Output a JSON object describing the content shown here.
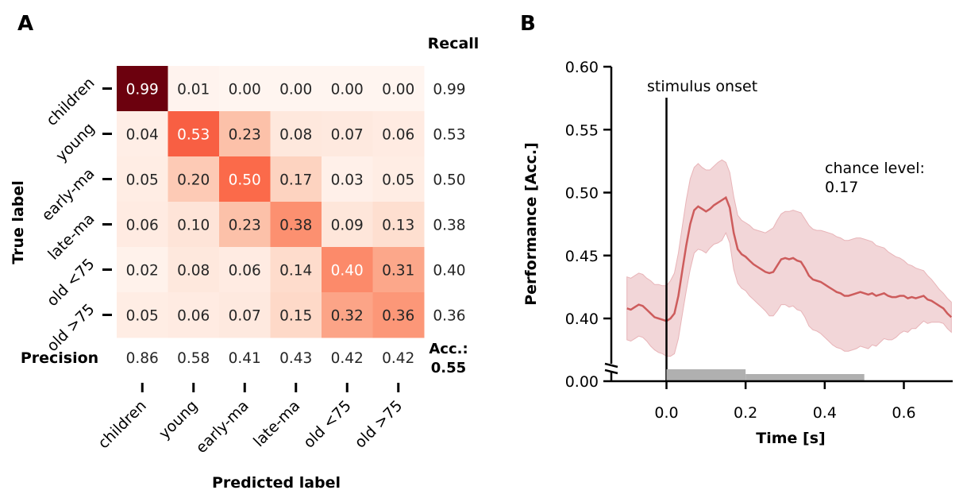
{
  "panels": {
    "a": {
      "letter": "A"
    },
    "b": {
      "letter": "B"
    }
  },
  "chart_data": [
    {
      "type": "heatmap",
      "categories": [
        "children",
        "young",
        "early-ma",
        "late-ma",
        "old <75",
        "old >75"
      ],
      "row_labels": [
        "children",
        "young",
        "early-ma",
        "late-ma",
        "old <75",
        "old >75"
      ],
      "col_labels": [
        "children",
        "young",
        "early-ma",
        "late-ma",
        "old <75",
        "old >75"
      ],
      "values": [
        [
          0.99,
          0.01,
          0.0,
          0.0,
          0.0,
          0.0
        ],
        [
          0.04,
          0.53,
          0.23,
          0.08,
          0.07,
          0.06
        ],
        [
          0.05,
          0.2,
          0.5,
          0.17,
          0.03,
          0.05
        ],
        [
          0.06,
          0.1,
          0.23,
          0.38,
          0.09,
          0.13
        ],
        [
          0.02,
          0.08,
          0.06,
          0.14,
          0.4,
          0.31
        ],
        [
          0.05,
          0.06,
          0.07,
          0.15,
          0.32,
          0.36
        ]
      ],
      "cell_labels": [
        [
          "0.99",
          "0.01",
          "0.00",
          "0.00",
          "0.00",
          "0.00"
        ],
        [
          "0.04",
          "0.53",
          "0.23",
          "0.08",
          "0.07",
          "0.06"
        ],
        [
          "0.05",
          "0.20",
          "0.50",
          "0.17",
          "0.03",
          "0.05"
        ],
        [
          "0.06",
          "0.10",
          "0.23",
          "0.38",
          "0.09",
          "0.13"
        ],
        [
          "0.02",
          "0.08",
          "0.06",
          "0.14",
          "0.40",
          "0.31"
        ],
        [
          "0.05",
          "0.06",
          "0.07",
          "0.15",
          "0.32",
          "0.36"
        ]
      ],
      "recall_title": "Recall",
      "recall": [
        "0.99",
        "0.53",
        "0.50",
        "0.38",
        "0.40",
        "0.36"
      ],
      "precision_title": "Precision",
      "precision": [
        "0.86",
        "0.58",
        "0.41",
        "0.43",
        "0.42",
        "0.42"
      ],
      "accuracy_label": "Acc.:",
      "accuracy_value": "0.55",
      "xlabel": "Predicted label",
      "ylabel": "True label",
      "colormap": "Reds",
      "color_low": "#fff5f0",
      "color_high": "#67000d"
    },
    {
      "type": "line",
      "xlabel": "Time [s]",
      "ylabel": "Performance [Acc.]",
      "xlim": [
        -0.1,
        0.73
      ],
      "ylim": [
        0.38,
        0.6
      ],
      "y_axis_break": true,
      "x_ticks": [
        0.0,
        0.2,
        0.4,
        0.6
      ],
      "x_tick_labels": [
        "0.0",
        "0.2",
        "0.4",
        "0.6"
      ],
      "y_ticks": [
        0.4,
        0.45,
        0.5,
        0.55,
        0.6
      ],
      "y_tick_labels": [
        "0.40",
        "0.45",
        "0.50",
        "0.55",
        "0.60"
      ],
      "y_bottom_tick_label": "0.00",
      "series_color": "#cd5c5c",
      "band_color": "#e8b4b8",
      "x": [
        -0.1,
        -0.09,
        -0.08,
        -0.07,
        -0.06,
        -0.05,
        -0.04,
        -0.03,
        -0.02,
        -0.01,
        0.0,
        0.01,
        0.02,
        0.03,
        0.04,
        0.05,
        0.06,
        0.07,
        0.08,
        0.09,
        0.1,
        0.11,
        0.12,
        0.13,
        0.14,
        0.15,
        0.16,
        0.17,
        0.18,
        0.19,
        0.2,
        0.21,
        0.22,
        0.23,
        0.24,
        0.25,
        0.26,
        0.27,
        0.28,
        0.29,
        0.3,
        0.31,
        0.32,
        0.33,
        0.34,
        0.35,
        0.36,
        0.37,
        0.38,
        0.39,
        0.4,
        0.41,
        0.42,
        0.43,
        0.44,
        0.45,
        0.46,
        0.47,
        0.48,
        0.49,
        0.5,
        0.51,
        0.52,
        0.53,
        0.54,
        0.55,
        0.56,
        0.57,
        0.58,
        0.59,
        0.6,
        0.61,
        0.62,
        0.63,
        0.64,
        0.65,
        0.66,
        0.67,
        0.68,
        0.69,
        0.7,
        0.71,
        0.72
      ],
      "y": [
        0.408,
        0.407,
        0.409,
        0.411,
        0.41,
        0.407,
        0.404,
        0.401,
        0.4,
        0.399,
        0.398,
        0.4,
        0.404,
        0.418,
        0.438,
        0.458,
        0.475,
        0.486,
        0.489,
        0.487,
        0.485,
        0.487,
        0.49,
        0.492,
        0.494,
        0.496,
        0.488,
        0.468,
        0.455,
        0.451,
        0.449,
        0.446,
        0.443,
        0.441,
        0.439,
        0.437,
        0.436,
        0.437,
        0.442,
        0.447,
        0.448,
        0.447,
        0.448,
        0.446,
        0.445,
        0.44,
        0.434,
        0.431,
        0.43,
        0.429,
        0.427,
        0.425,
        0.423,
        0.421,
        0.42,
        0.418,
        0.418,
        0.419,
        0.42,
        0.421,
        0.42,
        0.419,
        0.42,
        0.418,
        0.419,
        0.42,
        0.418,
        0.417,
        0.417,
        0.418,
        0.418,
        0.416,
        0.417,
        0.416,
        0.417,
        0.418,
        0.415,
        0.414,
        0.412,
        0.41,
        0.408,
        0.404,
        0.401
      ],
      "band_upper": [
        0.433,
        0.432,
        0.434,
        0.436,
        0.435,
        0.432,
        0.43,
        0.427,
        0.427,
        0.426,
        0.426,
        0.43,
        0.436,
        0.452,
        0.473,
        0.494,
        0.511,
        0.52,
        0.523,
        0.52,
        0.518,
        0.518,
        0.521,
        0.524,
        0.526,
        0.524,
        0.516,
        0.497,
        0.482,
        0.478,
        0.476,
        0.474,
        0.471,
        0.47,
        0.469,
        0.468,
        0.47,
        0.472,
        0.478,
        0.483,
        0.485,
        0.485,
        0.486,
        0.485,
        0.484,
        0.479,
        0.474,
        0.471,
        0.47,
        0.47,
        0.469,
        0.468,
        0.467,
        0.465,
        0.464,
        0.462,
        0.462,
        0.463,
        0.464,
        0.464,
        0.463,
        0.462,
        0.461,
        0.458,
        0.457,
        0.456,
        0.453,
        0.451,
        0.449,
        0.448,
        0.446,
        0.443,
        0.442,
        0.44,
        0.439,
        0.438,
        0.434,
        0.431,
        0.427,
        0.423,
        0.42,
        0.416,
        0.413
      ],
      "band_lower": [
        0.383,
        0.382,
        0.384,
        0.386,
        0.385,
        0.382,
        0.378,
        0.375,
        0.373,
        0.372,
        0.37,
        0.37,
        0.372,
        0.384,
        0.403,
        0.422,
        0.439,
        0.452,
        0.455,
        0.454,
        0.452,
        0.456,
        0.459,
        0.46,
        0.462,
        0.468,
        0.46,
        0.439,
        0.428,
        0.424,
        0.422,
        0.418,
        0.415,
        0.412,
        0.409,
        0.406,
        0.402,
        0.402,
        0.406,
        0.411,
        0.411,
        0.409,
        0.41,
        0.407,
        0.406,
        0.401,
        0.394,
        0.391,
        0.39,
        0.388,
        0.385,
        0.382,
        0.379,
        0.377,
        0.376,
        0.374,
        0.374,
        0.375,
        0.376,
        0.378,
        0.377,
        0.376,
        0.379,
        0.378,
        0.381,
        0.384,
        0.383,
        0.383,
        0.385,
        0.388,
        0.39,
        0.389,
        0.392,
        0.392,
        0.395,
        0.398,
        0.396,
        0.397,
        0.397,
        0.397,
        0.396,
        0.392,
        0.389
      ],
      "onset_x": 0.0,
      "onset_label": "stimulus onset",
      "chance_label": "chance level:",
      "chance_value": "0.17",
      "significance_bars": [
        {
          "start": 0.0,
          "end": 0.2
        },
        {
          "start": 0.2,
          "end": 0.5
        }
      ],
      "significance_color": "#b0b0b0"
    }
  ]
}
